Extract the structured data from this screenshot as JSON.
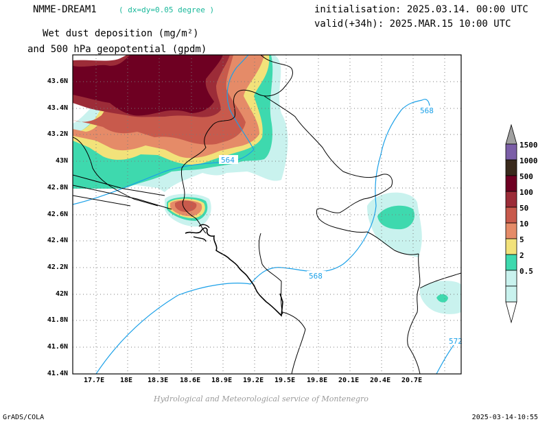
{
  "header": {
    "model_name": "NMME-DREAM1",
    "resolution_note": "( dx=dy=0.05 degree )",
    "title_line1": "Wet dust deposition (mg/m²)",
    "title_line2": "and 500 hPa geopotential (gpdm)",
    "init_line": "initialisation: 2025.03.14. 00:00 UTC",
    "valid_line": "valid(+34h): 2025.MAR.15 10:00 UTC"
  },
  "map": {
    "lat_labels": [
      "43.6N",
      "43.4N",
      "43.2N",
      "43N",
      "42.8N",
      "42.6N",
      "42.4N",
      "42.2N",
      "42N",
      "41.8N",
      "41.6N",
      "41.4N"
    ],
    "lon_labels": [
      "17.7E",
      "18E",
      "18.3E",
      "18.6E",
      "18.9E",
      "19.2E",
      "19.5E",
      "19.8E",
      "20.1E",
      "20.4E",
      "20.7E"
    ],
    "contour_labels": [
      "564",
      "568",
      "568",
      "572"
    ],
    "credit": "Hydrological and Meteorological service of Montenegro"
  },
  "legend": {
    "levels": [
      {
        "label": "1500",
        "color": "#7b5ea7"
      },
      {
        "label": "1000",
        "color": "#3a2a1c"
      },
      {
        "label": "500",
        "color": "#6e0022"
      },
      {
        "label": "100",
        "color": "#9c2c38"
      },
      {
        "label": "50",
        "color": "#c85a4c"
      },
      {
        "label": "10",
        "color": "#e58b68"
      },
      {
        "label": "5",
        "color": "#f2e27a"
      },
      {
        "label": "2",
        "color": "#3ed9ae"
      },
      {
        "label": "0.5",
        "color": "#c9f2ee"
      }
    ],
    "top_arrow_color": "#a0a0a0",
    "bottom_arrow_color": "#ffffff"
  },
  "footer": {
    "left": "GrADS/COLA",
    "right": "2025-03-14-10:55"
  },
  "colors": {
    "contour_line": "#1aa0e8",
    "border_line": "#000000"
  }
}
